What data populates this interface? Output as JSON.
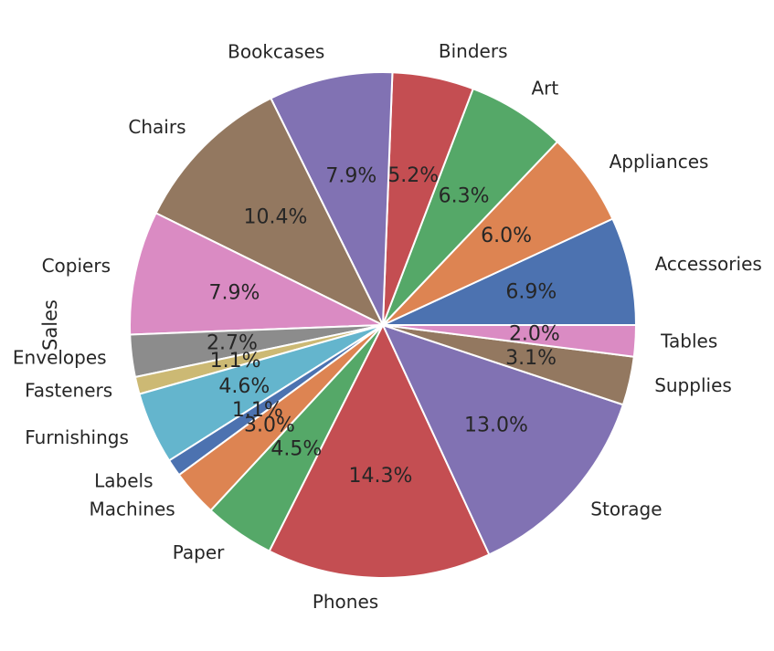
{
  "chart_data": {
    "type": "pie",
    "ylabel": "Sales",
    "autopct_format": "1 decimal percent",
    "categories": [
      "Accessories",
      "Appliances",
      "Art",
      "Binders",
      "Bookcases",
      "Chairs",
      "Copiers",
      "Envelopes",
      "Fasteners",
      "Furnishings",
      "Labels",
      "Machines",
      "Paper",
      "Phones",
      "Storage",
      "Supplies",
      "Tables"
    ],
    "values": [
      6.9,
      6.0,
      6.3,
      5.2,
      7.9,
      10.4,
      7.9,
      2.7,
      1.1,
      4.6,
      1.1,
      3.0,
      4.5,
      14.3,
      13.0,
      3.1,
      2.0
    ],
    "percent_labels": [
      "6.9%",
      "6.0%",
      "6.3%",
      "5.2%",
      "7.9%",
      "10.4%",
      "7.9%",
      "2.7%",
      "1.1%",
      "4.6%",
      "1.1%",
      "3.0%",
      "4.5%",
      "14.3%",
      "13.0%",
      "3.1%",
      "2.0%"
    ],
    "colors": [
      "#4c72b0",
      "#dd8452",
      "#55a868",
      "#c44e52",
      "#8172b3",
      "#937860",
      "#da8bc3",
      "#8c8c8c",
      "#ccb974",
      "#64b5cd",
      "#4c72b0",
      "#dd8452",
      "#55a868",
      "#c44e52",
      "#8172b3",
      "#937860",
      "#da8bc3"
    ],
    "start_angle_deg": 0,
    "direction": "counterclockwise",
    "legend": "none",
    "grid": false
  }
}
